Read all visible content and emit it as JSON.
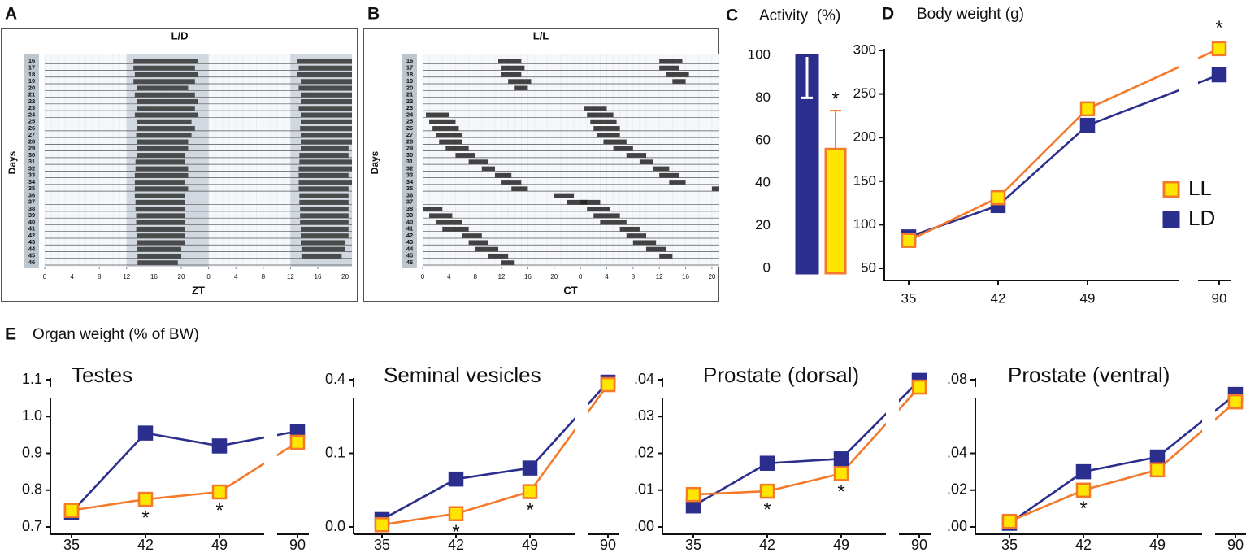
{
  "chart_data": [
    {
      "type": "actogram",
      "panel": "A",
      "title": "L/D",
      "xlabel": "ZT",
      "ylabel": "Days",
      "days": [
        16,
        17,
        18,
        19,
        20,
        21,
        22,
        23,
        24,
        25,
        26,
        27,
        28,
        29,
        30,
        31,
        32,
        33,
        34,
        35,
        36,
        37,
        38,
        39,
        40,
        41,
        42,
        43,
        44,
        45,
        46
      ],
      "xlim": [
        0,
        45
      ],
      "xticks": [
        0,
        4,
        8,
        12,
        16,
        20,
        {
          "value": 24,
          "label": "0"
        },
        {
          "value": 28,
          "label": "4"
        },
        {
          "value": 32,
          "label": "8"
        },
        {
          "value": 36,
          "label": "12"
        },
        {
          "value": 40,
          "label": "16"
        },
        {
          "value": 44,
          "label": "20"
        }
      ],
      "dark": [
        12,
        24
      ],
      "color": "#333333",
      "onset": [
        13,
        13,
        13.2,
        13,
        13.5,
        13.2,
        13.5,
        13.5,
        13.2,
        13.5,
        13.5,
        13.4,
        13.5,
        13.5,
        13.5,
        13.3,
        13.3,
        13.2,
        13.2,
        13.2,
        13.2,
        13.3,
        13.3,
        13.4,
        13.4,
        13.4,
        13.5,
        13.5,
        13.5,
        13.6,
        13.6
      ],
      "offset": [
        22.5,
        22,
        22.5,
        22,
        21,
        22,
        22.5,
        22,
        22.5,
        21.5,
        22,
        21.5,
        21,
        21,
        20.5,
        20.5,
        21,
        21,
        20.5,
        21,
        20.5,
        20.5,
        20.5,
        20.5,
        20.5,
        20.5,
        20.5,
        20.5,
        20,
        20,
        19.5
      ]
    },
    {
      "type": "actogram",
      "panel": "B",
      "title": "L/L",
      "xlabel": "CT",
      "ylabel": "Days",
      "days": [
        16,
        17,
        18,
        19,
        20,
        21,
        22,
        23,
        24,
        25,
        26,
        27,
        28,
        29,
        30,
        31,
        32,
        33,
        34,
        35,
        36,
        37,
        38,
        39,
        40,
        41,
        42,
        43,
        44,
        45,
        46
      ],
      "xlim": [
        0,
        45
      ],
      "xticks": [
        0,
        4,
        8,
        12,
        16,
        20,
        {
          "value": 24,
          "label": "0"
        },
        {
          "value": 28,
          "label": "4"
        },
        {
          "value": 32,
          "label": "8"
        },
        {
          "value": 36,
          "label": "12"
        },
        {
          "value": 40,
          "label": "16"
        },
        {
          "value": 44,
          "label": "20"
        }
      ],
      "color": "#222222",
      "onset": [
        11.5,
        12,
        12,
        13,
        14,
        null,
        null,
        null,
        0.5,
        1,
        1.5,
        2,
        2.5,
        3.5,
        5,
        7,
        9,
        11,
        12,
        13.5,
        20,
        22,
        0,
        1,
        2,
        3,
        6,
        7,
        8,
        10,
        12
      ],
      "offset": [
        15,
        15.5,
        15,
        16.5,
        16,
        null,
        null,
        null,
        4,
        5,
        5.5,
        6,
        6,
        7,
        8,
        10,
        11,
        13.5,
        15,
        16,
        23,
        25,
        3,
        4.5,
        6,
        7,
        9,
        10,
        11.5,
        13,
        14
      ]
    },
    {
      "type": "bar",
      "panel": "C",
      "title": "Activity  (%)",
      "values": [
        100,
        56
      ],
      "errors": [
        20,
        18
      ],
      "colors": [
        "#2b2e8c",
        "#ffe600"
      ],
      "edgecolors": [
        "#2b2e8c",
        "#f4792a"
      ],
      "ylim": [
        0,
        100
      ],
      "yticks": [
        0,
        20,
        40,
        60,
        80,
        100
      ],
      "annotations": [
        {
          "index": 1,
          "text": "*"
        }
      ]
    },
    {
      "type": "line",
      "panel": "D",
      "title": "Body weight (g)",
      "categories": [
        "35",
        "42",
        "49",
        "90"
      ],
      "series": [
        {
          "name": "LL",
          "color": "#f4792a",
          "fill": "#ffe600",
          "values": [
            82,
            131,
            233,
            302
          ]
        },
        {
          "name": "LD",
          "color": "#2b2e8c",
          "fill": "#2b2e8c",
          "values": [
            86,
            122,
            214,
            272
          ]
        }
      ],
      "ylim": [
        50,
        300
      ],
      "yticks": [
        50,
        100,
        150,
        200,
        250,
        300
      ],
      "legend": "right",
      "annotations": [
        {
          "x": "90",
          "text": "*"
        }
      ]
    },
    {
      "type": "line",
      "title": "Testes",
      "categories": [
        "35",
        "42",
        "49",
        "90"
      ],
      "series": [
        {
          "name": "LL",
          "color": "#f4792a",
          "fill": "#ffe600",
          "values": [
            0.745,
            0.775,
            0.795,
            0.93
          ]
        },
        {
          "name": "LD",
          "color": "#2b2e8c",
          "fill": "#2b2e8c",
          "values": [
            0.74,
            0.955,
            0.92,
            0.96
          ]
        }
      ],
      "ylim": [
        0.7,
        1.1
      ],
      "yticks": [
        0.7,
        0.8,
        0.9,
        {
          "value": 1,
          "label": "1.0"
        },
        1.1
      ],
      "annotations": [
        {
          "x": "42",
          "text": "*"
        },
        {
          "x": "49",
          "text": "*"
        }
      ]
    },
    {
      "type": "line",
      "title": "Seminal vesicles",
      "categories": [
        "35",
        "42",
        "49",
        "90"
      ],
      "series": [
        {
          "name": "LL",
          "color": "#f4792a",
          "fill": "#ffe600",
          "values": [
            0.003,
            0.018,
            0.048,
            0.38
          ]
        },
        {
          "name": "LD",
          "color": "#2b2e8c",
          "fill": "#2b2e8c",
          "values": [
            0.01,
            0.065,
            0.08,
            0.39
          ]
        }
      ],
      "ylim": [
        0,
        0.4
      ],
      "y_break": [
        0.1,
        0.4
      ],
      "yticks": [
        {
          "value": 0,
          "label": "0.0"
        },
        0.1,
        0.4
      ],
      "annotations": [
        {
          "x": "42",
          "text": "*"
        },
        {
          "x": "49",
          "text": "*"
        }
      ]
    },
    {
      "type": "line",
      "title": "Prostate (dorsal)",
      "categories": [
        "35",
        "42",
        "49",
        "90"
      ],
      "series": [
        {
          "name": "LL",
          "color": "#f4792a",
          "fill": "#ffe600",
          "values": [
            0.0088,
            0.0097,
            0.0145,
            0.038
          ]
        },
        {
          "name": "LD",
          "color": "#2b2e8c",
          "fill": "#2b2e8c",
          "values": [
            0.0057,
            0.0173,
            0.0185,
            0.0398
          ]
        }
      ],
      "ylim": [
        0,
        0.04
      ],
      "yticks": [
        {
          "value": 0,
          "label": ".00"
        },
        {
          "value": 0.01,
          "label": ".01"
        },
        {
          "value": 0.02,
          "label": ".02"
        },
        {
          "value": 0.03,
          "label": ".03"
        },
        {
          "value": 0.04,
          "label": ".04"
        }
      ],
      "annotations": [
        {
          "x": "42",
          "text": "*"
        },
        {
          "x": "49",
          "text": "*"
        }
      ]
    },
    {
      "type": "line",
      "title": "Prostate (ventral)",
      "categories": [
        "35",
        "42",
        "49",
        "90"
      ],
      "series": [
        {
          "name": "LL",
          "color": "#f4792a",
          "fill": "#ffe600",
          "values": [
            0.003,
            0.02,
            0.031,
            0.068
          ]
        },
        {
          "name": "LD",
          "color": "#2b2e8c",
          "fill": "#2b2e8c",
          "values": [
            0.002,
            0.03,
            0.038,
            0.072
          ]
        }
      ],
      "ylim": [
        0,
        0.08
      ],
      "yticks": [
        {
          "value": 0,
          "label": ".00"
        },
        {
          "value": 0.02,
          "label": ".02"
        },
        {
          "value": 0.04,
          "label": ".04"
        },
        {
          "value": 0.08,
          "label": ".08"
        }
      ],
      "annotations": [
        {
          "x": "42",
          "text": "*"
        }
      ]
    }
  ],
  "organ_panel": {
    "panel": "E",
    "title": "Organ weight (% of BW)"
  }
}
